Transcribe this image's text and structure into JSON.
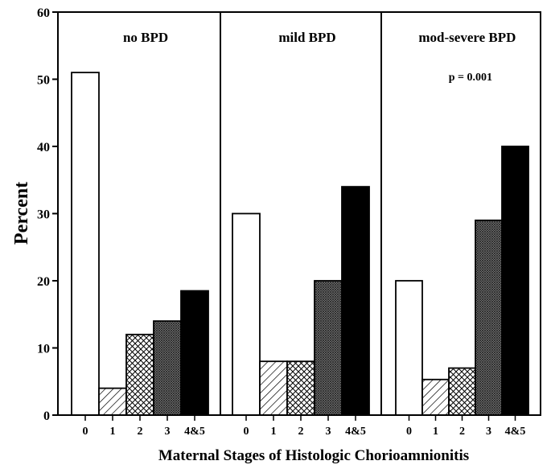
{
  "chart_data": {
    "type": "bar",
    "ylabel": "Percent",
    "xlabel": "Maternal Stages of Histologic Chorioamnionitis",
    "ylim": [
      0,
      60
    ],
    "yticks": [
      "0",
      "10",
      "20",
      "30",
      "40",
      "50",
      "60"
    ],
    "categories": [
      "0",
      "1",
      "2",
      "3",
      "4&5"
    ],
    "category_fills": [
      "white",
      "diagonal-hatch",
      "crosshatch",
      "dense-crosshatch",
      "black"
    ],
    "panels": [
      {
        "title": "no BPD",
        "values": [
          51,
          4,
          12,
          14,
          18.5
        ]
      },
      {
        "title": "mild BPD",
        "values": [
          30,
          8,
          8,
          20,
          34
        ]
      },
      {
        "title": "mod-severe BPD",
        "annotation": "p = 0.001",
        "values": [
          20,
          5.3,
          7,
          29,
          40
        ]
      }
    ]
  }
}
